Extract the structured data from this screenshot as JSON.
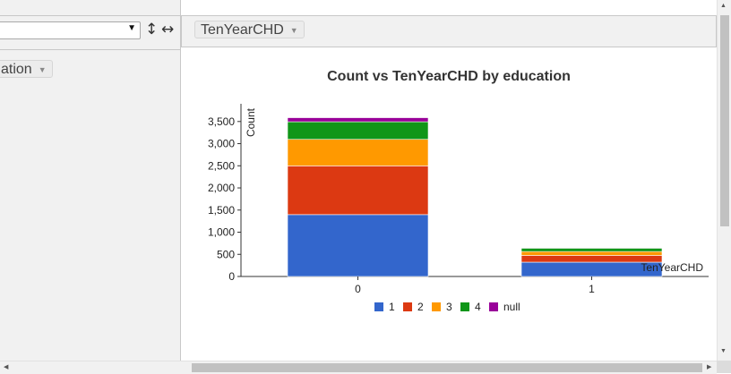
{
  "left_toolbar": {
    "select_value": "",
    "select_caret": "▼",
    "vertical_icon_glyph": "↕",
    "horizontal_icon_glyph": "↔"
  },
  "left_panel": {
    "pill_label": "ation",
    "pill_caret": "▼"
  },
  "right_toolbar": {
    "pill_label": "TenYearCHD",
    "pill_caret": "▼"
  },
  "scrollbars": {
    "up_arrow": "▲",
    "down_arrow": "▼",
    "left_arrow": "◀",
    "right_arrow": "▶"
  },
  "chart_data": {
    "type": "bar",
    "stacked": true,
    "title": "Count vs TenYearCHD by education",
    "xlabel": "TenYearCHD",
    "ylabel": "Count",
    "categories": [
      "0",
      "1"
    ],
    "ylim": [
      0,
      3900
    ],
    "yticks": [
      0,
      500,
      1000,
      1500,
      2000,
      2500,
      3000,
      3500
    ],
    "ytick_labels": [
      "0",
      "500",
      "1,000",
      "1,500",
      "2,000",
      "2,500",
      "3,000",
      "3,500"
    ],
    "series": [
      {
        "name": "1",
        "color": "#3366cc",
        "values": [
          1397,
          323
        ]
      },
      {
        "name": "2",
        "color": "#dc3912",
        "values": [
          1101,
          152
        ]
      },
      {
        "name": "3",
        "color": "#ff9900",
        "values": [
          599,
          88
        ]
      },
      {
        "name": "4",
        "color": "#109618",
        "values": [
          397,
          76
        ]
      },
      {
        "name": "null",
        "color": "#990099",
        "values": [
          92,
          13
        ]
      }
    ],
    "grid": false,
    "legend_position": "bottom"
  }
}
